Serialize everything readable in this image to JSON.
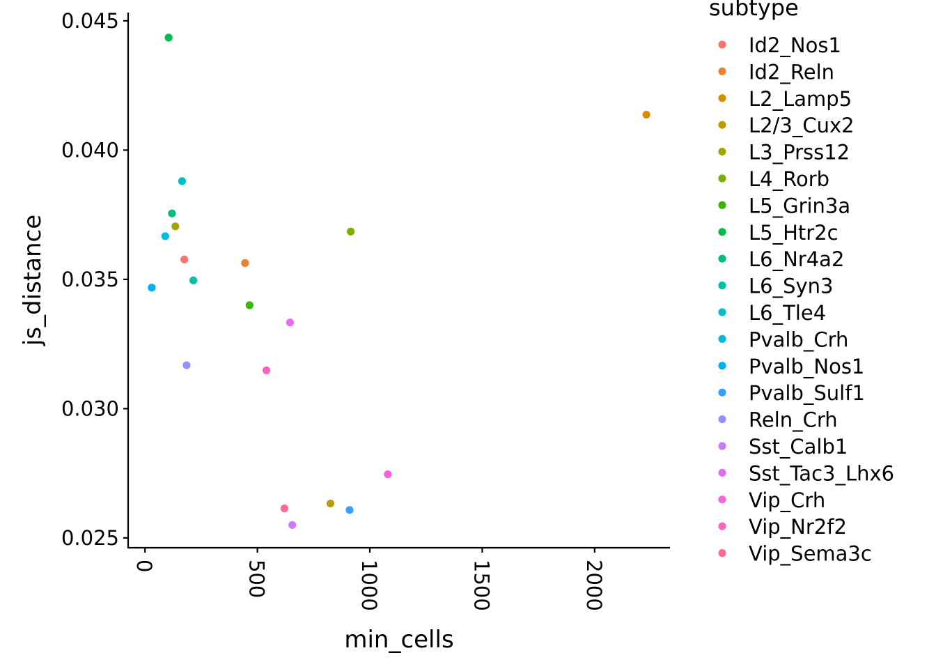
{
  "chart_data": {
    "type": "scatter",
    "xlabel": "min_cells",
    "ylabel": "js_distance",
    "xlim": [
      -75,
      2335
    ],
    "ylim": [
      0.02462,
      0.04532
    ],
    "x_ticks": [
      0,
      500,
      1000,
      1500,
      2000
    ],
    "x_tick_labels": [
      "0",
      "500",
      "1000",
      "1500",
      "2000"
    ],
    "y_ticks": [
      0.025,
      0.03,
      0.035,
      0.04,
      0.045
    ],
    "y_tick_labels": [
      "0.025",
      "0.030",
      "0.035",
      "0.040",
      "0.045"
    ],
    "grid": false,
    "legend": {
      "title": "subtype",
      "placement": "right"
    },
    "series": [
      {
        "name": "Id2_Nos1",
        "color": "#F8766D",
        "x": 175,
        "y": 0.03577
      },
      {
        "name": "Id2_Reln",
        "color": "#EA8331",
        "x": 445,
        "y": 0.03563
      },
      {
        "name": "L2_Lamp5",
        "color": "#D89000",
        "x": 2230,
        "y": 0.04137
      },
      {
        "name": "L2/3_Cux2",
        "color": "#C09B00",
        "x": 825,
        "y": 0.02633
      },
      {
        "name": "L3_Prss12",
        "color": "#A3A500",
        "x": 135,
        "y": 0.03705
      },
      {
        "name": "L4_Rorb",
        "color": "#7CAE00",
        "x": 915,
        "y": 0.03685
      },
      {
        "name": "L5_Grin3a",
        "color": "#39B600",
        "x": 465,
        "y": 0.034
      },
      {
        "name": "L5_Htr2c",
        "color": "#00BB4E",
        "x": 105,
        "y": 0.04435
      },
      {
        "name": "L6_Nr4a2",
        "color": "#00BF7D",
        "x": 120,
        "y": 0.03755
      },
      {
        "name": "L6_Syn3",
        "color": "#00C1A3",
        "x": 215,
        "y": 0.03496
      },
      {
        "name": "L6_Tle4",
        "color": "#00BFC4",
        "x": 165,
        "y": 0.0388
      },
      {
        "name": "Pvalb_Crh",
        "color": "#00BAE0",
        "x": 90,
        "y": 0.03667
      },
      {
        "name": "Pvalb_Nos1",
        "color": "#00B0F6",
        "x": 30,
        "y": 0.03468
      },
      {
        "name": "Pvalb_Sulf1",
        "color": "#35A2FF",
        "x": 910,
        "y": 0.02608
      },
      {
        "name": "Reln_Crh",
        "color": "#9590FF",
        "x": 185,
        "y": 0.03168
      },
      {
        "name": "Sst_Calb1",
        "color": "#C77CFF",
        "x": 655,
        "y": 0.0255
      },
      {
        "name": "Sst_Tac3_Lhx6",
        "color": "#E76BF3",
        "x": 645,
        "y": 0.03333
      },
      {
        "name": "Vip_Crh",
        "color": "#FA62DB",
        "x": 1080,
        "y": 0.02746
      },
      {
        "name": "Vip_Nr2f2",
        "color": "#FF62BC",
        "x": 540,
        "y": 0.03148
      },
      {
        "name": "Vip_Sema3c",
        "color": "#FF6C91",
        "x": 620,
        "y": 0.02614
      }
    ]
  }
}
